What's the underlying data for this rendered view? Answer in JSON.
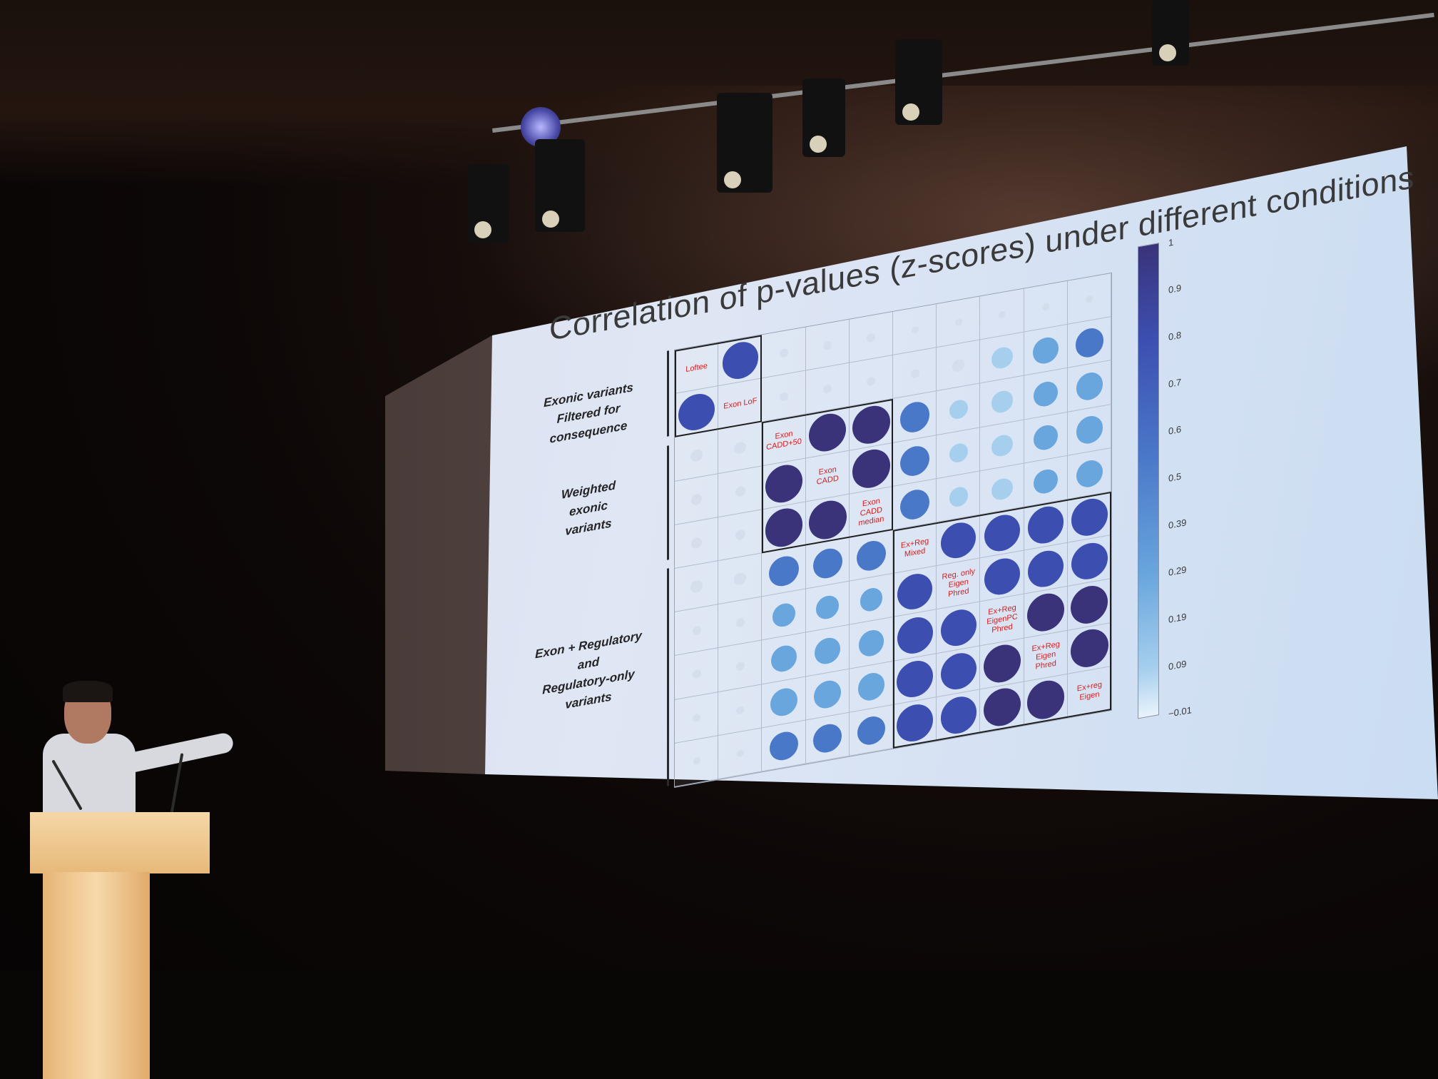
{
  "slide": {
    "title": "Correlation of p-values (z-scores) under different conditions",
    "groups": [
      "Exonic variants\nFiltered for consequence",
      "Weighted\nexonic\nvariants",
      "Exon + Regulatory\nand\nRegulatory-only\nvariants"
    ],
    "diagonal_labels": [
      "Loftee",
      "Exon LoF",
      "Exon\nCADD+50",
      "Exon\nCADD",
      "Exon\nCADD\nmedian",
      "Ex+Reg\nMixed",
      "Reg. only\nEigen\nPhred",
      "Ex+Reg\nEigenPC\nPhred",
      "Ex+Reg\nEigen\nPhred",
      "Ex+reg\nEigen"
    ],
    "colorbar_ticks": [
      "1",
      "0.9",
      "0.8",
      "0.7",
      "0.6",
      "0.5",
      "0.39",
      "0.29",
      "0.19",
      "0.09",
      "−0.01"
    ]
  },
  "correlation_matrix": [
    [
      1.0,
      0.9,
      0.05,
      0.05,
      0.05,
      0.03,
      0.02,
      0.02,
      0.03,
      0.02
    ],
    [
      0.9,
      1.0,
      0.05,
      0.05,
      0.05,
      0.05,
      0.1,
      0.3,
      0.45,
      0.55
    ],
    [
      0.1,
      0.1,
      1.0,
      0.97,
      0.97,
      0.6,
      0.25,
      0.3,
      0.4,
      0.5
    ],
    [
      0.08,
      0.07,
      0.97,
      1.0,
      0.98,
      0.6,
      0.25,
      0.3,
      0.4,
      0.5
    ],
    [
      0.08,
      0.07,
      0.97,
      0.98,
      1.0,
      0.6,
      0.25,
      0.3,
      0.4,
      0.5
    ],
    [
      0.1,
      0.1,
      0.6,
      0.6,
      0.6,
      1.0,
      0.85,
      0.88,
      0.9,
      0.9
    ],
    [
      0.05,
      0.05,
      0.35,
      0.35,
      0.35,
      0.85,
      1.0,
      0.88,
      0.9,
      0.9
    ],
    [
      0.05,
      0.05,
      0.45,
      0.45,
      0.45,
      0.88,
      0.88,
      1.0,
      0.96,
      0.96
    ],
    [
      0.04,
      0.04,
      0.5,
      0.5,
      0.5,
      0.9,
      0.9,
      0.96,
      1.0,
      0.97
    ],
    [
      0.03,
      0.03,
      0.55,
      0.55,
      0.55,
      0.9,
      0.9,
      0.96,
      0.97,
      1.0
    ]
  ],
  "colors": {
    "screen": "#dfe6f4",
    "diag_label": "#d71d1d",
    "strong": "#3a337a",
    "mid": "#4a78c9",
    "weak": "#a6cfee"
  }
}
